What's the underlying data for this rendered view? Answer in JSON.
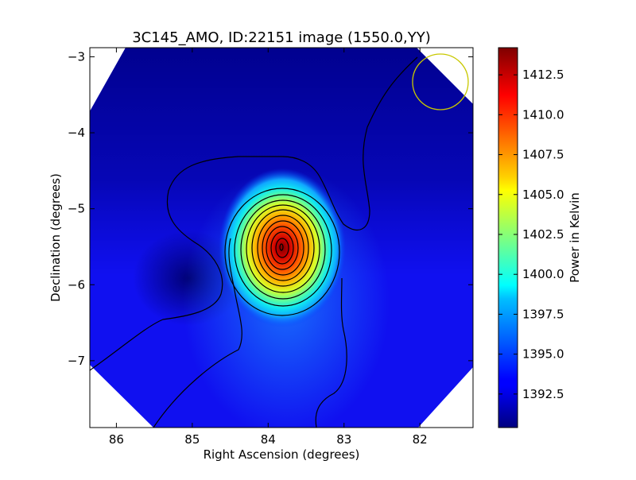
{
  "chart_data": {
    "type": "heatmap",
    "title": "3C145_AMO, ID:22151 image (1550.0,YY)",
    "xlabel": "Right Ascension (degrees)",
    "ylabel": "Declination (degrees)",
    "xlim": [
      86.35,
      81.3
    ],
    "ylim": [
      -7.88,
      -2.88
    ],
    "x_ticks": [
      86,
      85,
      84,
      83,
      82
    ],
    "y_ticks": [
      -3,
      -4,
      -5,
      -6,
      -7
    ],
    "x_tick_labels": [
      "86",
      "85",
      "84",
      "83",
      "82"
    ],
    "y_tick_labels": [
      "−3",
      "−4",
      "−5",
      "−6",
      "−7"
    ],
    "colorbar": {
      "label": "Power in Kelvin",
      "range": [
        1390.4,
        1414.2
      ],
      "ticks": [
        1392.5,
        1395.0,
        1397.5,
        1400.0,
        1402.5,
        1405.0,
        1407.5,
        1410.0,
        1412.5
      ],
      "tick_labels": [
        "1392.5",
        "1395.0",
        "1397.5",
        "1400.0",
        "1402.5",
        "1405.0",
        "1407.5",
        "1410.0",
        "1412.5"
      ],
      "colormap": "jet"
    },
    "peak": {
      "ra": 83.78,
      "dec": -5.52,
      "value": 1414.2
    },
    "minimum": {
      "ra": 84.95,
      "dec": -5.92,
      "value": 1390.5
    },
    "beam_marker": {
      "ra": 81.73,
      "dec": -3.33,
      "color": "#c8c800"
    },
    "contours": true,
    "grid": false
  }
}
